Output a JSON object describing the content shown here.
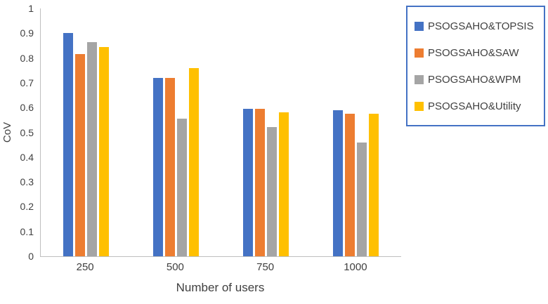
{
  "chart_data": {
    "type": "bar",
    "title": "",
    "xlabel": "Number of users",
    "ylabel": "CoV",
    "ylim": [
      0,
      1
    ],
    "ytick_step": 0.1,
    "grid": false,
    "legend_position": "right",
    "legend_border_color": "#4472C4",
    "categories": [
      "250",
      "500",
      "750",
      "1000"
    ],
    "series": [
      {
        "name": "PSOGSAHO&TOPSIS",
        "color": "#4472C4",
        "values": [
          0.9,
          0.72,
          0.595,
          0.59
        ]
      },
      {
        "name": "PSOGSAHO&SAW",
        "color": "#ED7D31",
        "values": [
          0.815,
          0.72,
          0.595,
          0.575
        ]
      },
      {
        "name": "PSOGSAHO&WPM",
        "color": "#A5A5A5",
        "values": [
          0.865,
          0.555,
          0.52,
          0.46
        ]
      },
      {
        "name": "PSOGSAHO&Utility",
        "color": "#FFC000",
        "values": [
          0.845,
          0.76,
          0.58,
          0.575
        ]
      }
    ],
    "ytick_labels": [
      "0",
      "0.1",
      "0.2",
      "0.3",
      "0.4",
      "0.5",
      "0.6",
      "0.7",
      "0.8",
      "0.9",
      "1"
    ]
  }
}
